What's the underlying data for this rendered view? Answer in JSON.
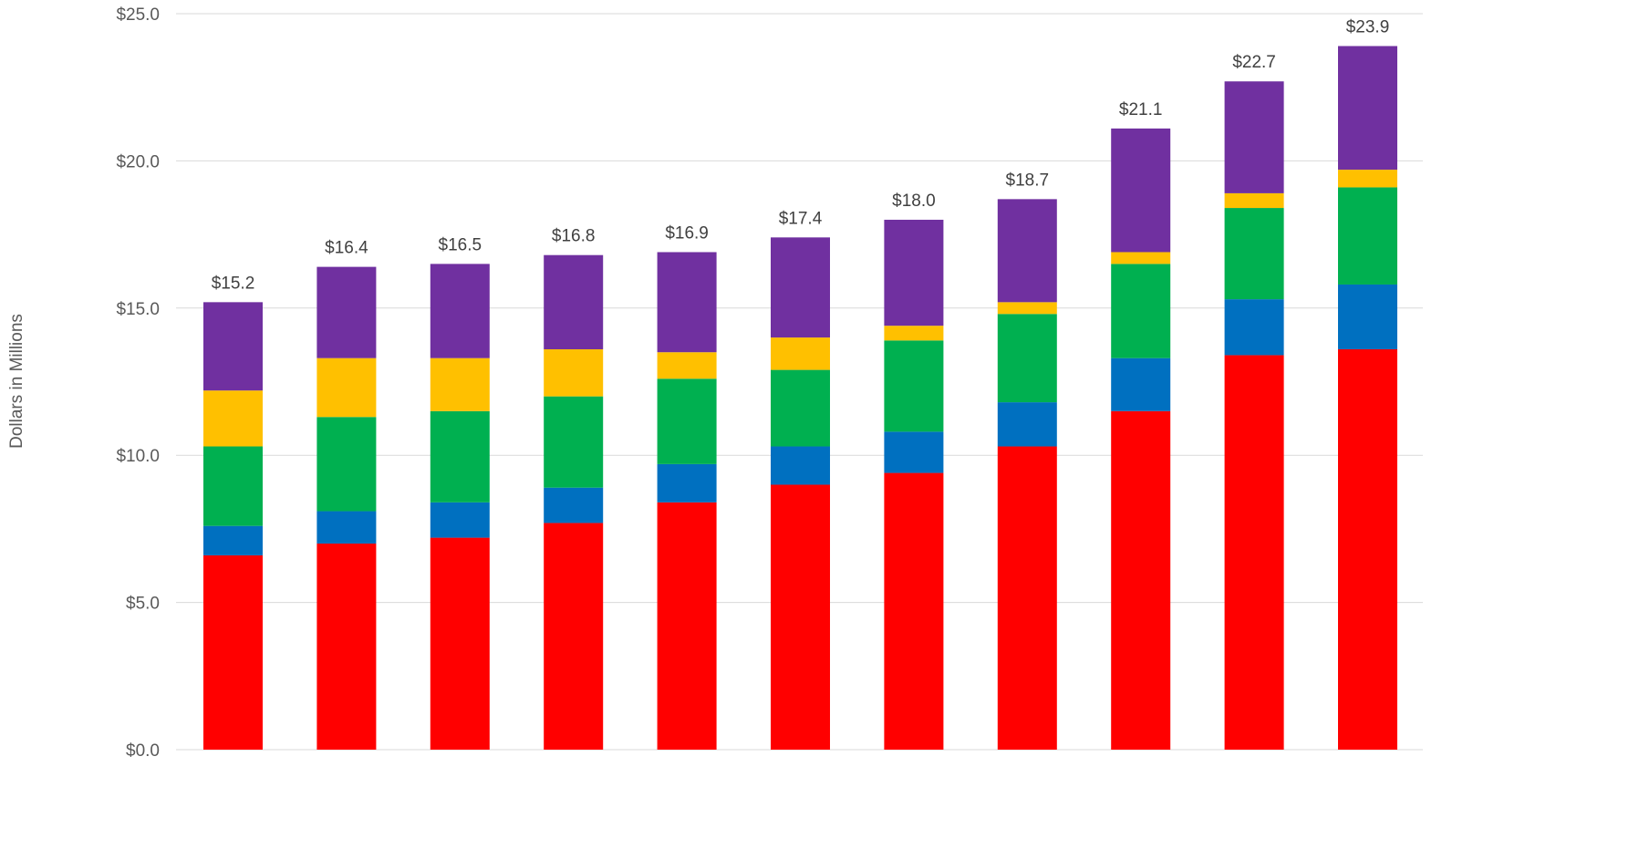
{
  "chart_data": {
    "type": "bar",
    "stacked": true,
    "title": "",
    "xlabel": "",
    "ylabel": "Dollars in Millions",
    "ylim": [
      0,
      25
    ],
    "yticks": [
      0,
      5,
      10,
      15,
      20,
      25
    ],
    "ytick_labels": [
      "$0.0",
      "$5.0",
      "$10.0",
      "$15.0",
      "$20.0",
      "$25.0"
    ],
    "grid": true,
    "legend": "none",
    "categories": [
      "",
      "",
      "",
      "",
      "",
      "",
      "",
      "",
      "",
      "",
      ""
    ],
    "series": [
      {
        "color": "#ff0000",
        "values": [
          6.6,
          7.0,
          7.2,
          7.7,
          8.4,
          9.0,
          9.4,
          10.3,
          11.5,
          13.4,
          13.6
        ]
      },
      {
        "color": "#0070c0",
        "values": [
          1.0,
          1.1,
          1.2,
          1.2,
          1.3,
          1.3,
          1.4,
          1.5,
          1.8,
          1.9,
          2.2
        ]
      },
      {
        "color": "#00b050",
        "values": [
          2.7,
          3.2,
          3.1,
          3.1,
          2.9,
          2.6,
          3.1,
          3.0,
          3.2,
          3.1,
          3.3
        ]
      },
      {
        "color": "#ffc000",
        "values": [
          1.9,
          2.0,
          1.8,
          1.6,
          0.9,
          1.1,
          0.5,
          0.4,
          0.4,
          0.5,
          0.6
        ]
      },
      {
        "color": "#7030a0",
        "values": [
          3.0,
          3.1,
          3.2,
          3.2,
          3.4,
          3.4,
          3.6,
          3.5,
          4.2,
          3.8,
          4.2
        ]
      }
    ],
    "totals": [
      15.2,
      16.4,
      16.5,
      16.8,
      16.9,
      17.4,
      18.0,
      18.7,
      21.1,
      22.7,
      23.9
    ],
    "total_labels": [
      "$15.2",
      "$16.4",
      "$16.5",
      "$16.8",
      "$16.9",
      "$17.4",
      "$18.0",
      "$18.7",
      "$21.1",
      "$22.7",
      "$23.9"
    ]
  }
}
